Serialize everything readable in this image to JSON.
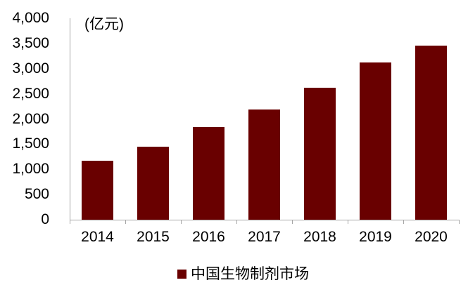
{
  "chart_data": {
    "type": "bar",
    "title": "",
    "unit_label": "(亿元)",
    "categories": [
      "2014",
      "2015",
      "2016",
      "2017",
      "2018",
      "2019",
      "2020"
    ],
    "values": [
      1167,
      1453,
      1836,
      2185,
      2622,
      3120,
      3457
    ],
    "series_name": "中国生物制剂市场",
    "xlabel": "",
    "ylabel": "",
    "ylim": [
      0,
      4000
    ],
    "ytick_step": 500,
    "ytick_labels": [
      "0",
      "500",
      "1,000",
      "1,500",
      "2,000",
      "2,500",
      "3,000",
      "3,500",
      "4,000"
    ],
    "grid": false,
    "legend_position": "bottom",
    "bar_color": "#690000",
    "axis_color": "#a6a6a6",
    "text_color": "#000000",
    "background_color": "#ffffff"
  },
  "legend": {
    "marker": "square",
    "label": "中国生物制剂市场"
  }
}
